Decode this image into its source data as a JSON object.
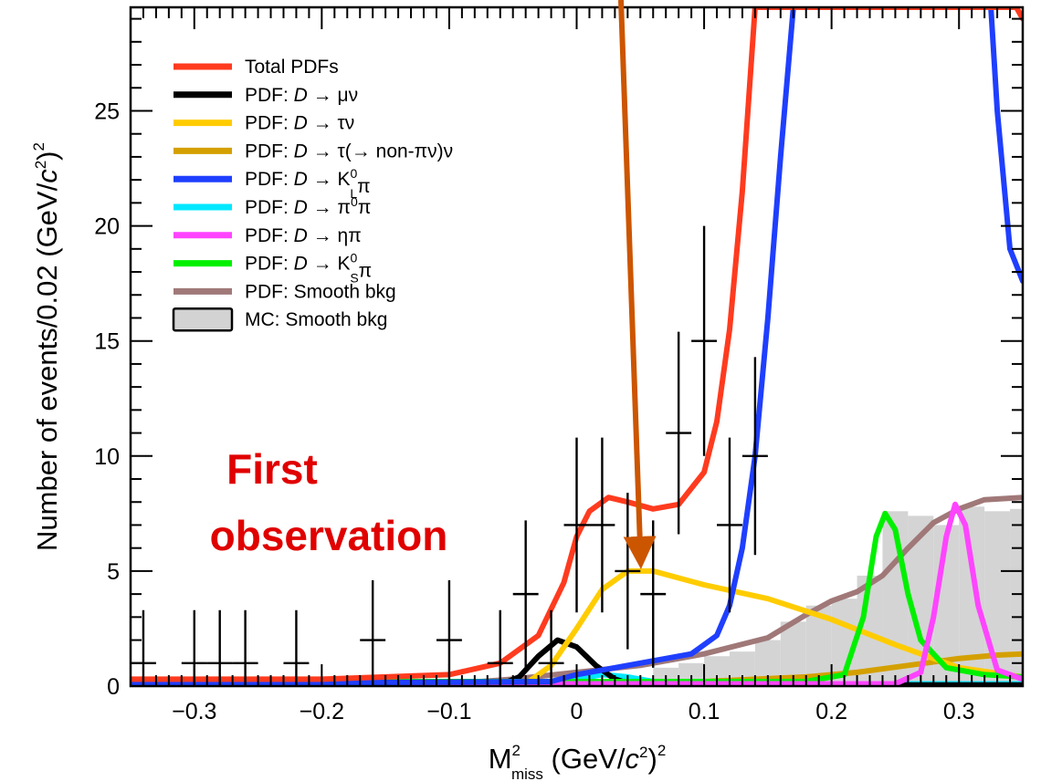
{
  "chart_data": {
    "type": "line",
    "xlabel": "M²miss (GeV/c²)²",
    "xlabel_parts": {
      "main": "M",
      "sup": "2",
      "sub": "miss",
      "rest": "(GeV/",
      "c": "c",
      "rest2": ")"
    },
    "ylabel": "Number of events/0.02 (GeV/c²)²",
    "xlim": [
      -0.35,
      0.35
    ],
    "ylim": [
      0,
      29.5
    ],
    "x_ticks": [
      -0.3,
      -0.2,
      -0.1,
      0,
      0.1,
      0.2,
      0.3
    ],
    "x_tick_labels": [
      "−0.3",
      "−0.2",
      "−0.1",
      "0",
      "0.1",
      "0.2",
      "0.3"
    ],
    "y_ticks": [
      0,
      5,
      10,
      15,
      20,
      25
    ],
    "y_tick_labels": [
      "0",
      "5",
      "10",
      "15",
      "20",
      "25"
    ],
    "legend_position": "top-left",
    "legend": [
      {
        "label": "Total PDFs",
        "color": "#ff3b1f",
        "kind": "line"
      },
      {
        "label": "PDF: D → μν",
        "color": "#000000",
        "kind": "line"
      },
      {
        "label": "PDF: D → τν",
        "color": "#ffcc00",
        "kind": "line"
      },
      {
        "label": "PDF: D → τ(→ non-πν)ν",
        "color": "#d4a000",
        "kind": "line"
      },
      {
        "label": "PDF: D → K⁰Lπ",
        "color": "#1f3fff",
        "kind": "line"
      },
      {
        "label": "PDF: D → π⁰π",
        "color": "#00e8ff",
        "kind": "line"
      },
      {
        "label": "PDF: D → ηπ",
        "color": "#ff44ff",
        "kind": "line"
      },
      {
        "label": "PDF: D → K⁰Sπ",
        "color": "#00f000",
        "kind": "line"
      },
      {
        "label": "PDF: Smooth bkg",
        "color": "#a07878",
        "kind": "line"
      },
      {
        "label": "MC: Smooth bkg",
        "color": "#d3d3d3",
        "kind": "box"
      }
    ],
    "annotation": {
      "lines": [
        "First",
        "observation"
      ],
      "color": "#e00000",
      "arrow_color": "#cc5500",
      "arrow_target": [
        0.05,
        5
      ]
    },
    "data_points": [
      {
        "x": -0.34,
        "y": 1,
        "err": 2.3
      },
      {
        "x": -0.3,
        "y": 1,
        "err": 2.3
      },
      {
        "x": -0.28,
        "y": 1,
        "err": 2.3
      },
      {
        "x": -0.26,
        "y": 1,
        "err": 2.3
      },
      {
        "x": -0.22,
        "y": 1,
        "err": 2.3
      },
      {
        "x": -0.16,
        "y": 2,
        "err": 2.6
      },
      {
        "x": -0.1,
        "y": 2,
        "err": 2.6
      },
      {
        "x": -0.06,
        "y": 1,
        "err": 2.3
      },
      {
        "x": -0.04,
        "y": 4,
        "err": 3.2
      },
      {
        "x": -0.02,
        "y": 1,
        "err": 2.3
      },
      {
        "x": 0.0,
        "y": 7,
        "err": 3.8
      },
      {
        "x": 0.02,
        "y": 7,
        "err": 3.8
      },
      {
        "x": 0.04,
        "y": 5,
        "err": 3.4
      },
      {
        "x": 0.06,
        "y": 4,
        "err": 3.2
      },
      {
        "x": 0.08,
        "y": 11,
        "err": 4.4
      },
      {
        "x": 0.1,
        "y": 15,
        "err": 5.0
      },
      {
        "x": 0.12,
        "y": 7,
        "err": 3.8
      },
      {
        "x": 0.14,
        "y": 10,
        "err": 4.3
      }
    ],
    "mc_histogram": {
      "bin_width": 0.02,
      "bins": [
        {
          "x": 0.07,
          "y": 0.8
        },
        {
          "x": 0.09,
          "y": 1.0
        },
        {
          "x": 0.11,
          "y": 1.3
        },
        {
          "x": 0.13,
          "y": 1.5
        },
        {
          "x": 0.15,
          "y": 2.0
        },
        {
          "x": 0.17,
          "y": 2.8
        },
        {
          "x": 0.19,
          "y": 3.5
        },
        {
          "x": 0.21,
          "y": 3.8
        },
        {
          "x": 0.23,
          "y": 4.8
        },
        {
          "x": 0.25,
          "y": 7.6
        },
        {
          "x": 0.27,
          "y": 7.4
        },
        {
          "x": 0.29,
          "y": 7.0
        },
        {
          "x": 0.31,
          "y": 7.8
        },
        {
          "x": 0.33,
          "y": 7.6
        },
        {
          "x": 0.35,
          "y": 7.7
        }
      ]
    },
    "series": [
      {
        "name": "PDF: Smooth bkg",
        "color": "#a07878",
        "points": [
          [
            -0.35,
            0.05
          ],
          [
            -0.1,
            0.1
          ],
          [
            -0.05,
            0.3
          ],
          [
            0.0,
            0.6
          ],
          [
            0.05,
            0.9
          ],
          [
            0.1,
            1.4
          ],
          [
            0.15,
            2.1
          ],
          [
            0.18,
            3.1
          ],
          [
            0.2,
            3.7
          ],
          [
            0.22,
            4.1
          ],
          [
            0.24,
            4.8
          ],
          [
            0.26,
            6.0
          ],
          [
            0.28,
            7.1
          ],
          [
            0.3,
            7.7
          ],
          [
            0.32,
            8.1
          ],
          [
            0.35,
            8.2
          ]
        ]
      },
      {
        "name": "PDF: D → τ(→ non-πν)ν",
        "color": "#d4a000",
        "points": [
          [
            -0.35,
            0.1
          ],
          [
            -0.1,
            0.1
          ],
          [
            0.0,
            0.15
          ],
          [
            0.1,
            0.2
          ],
          [
            0.18,
            0.4
          ],
          [
            0.22,
            0.6
          ],
          [
            0.26,
            0.9
          ],
          [
            0.3,
            1.2
          ],
          [
            0.33,
            1.35
          ],
          [
            0.35,
            1.4
          ]
        ]
      },
      {
        "name": "PDF: D → π⁰π",
        "color": "#00e8ff",
        "points": [
          [
            -0.35,
            0.1
          ],
          [
            -0.02,
            0.1
          ],
          [
            0.0,
            0.3
          ],
          [
            0.02,
            0.5
          ],
          [
            0.04,
            0.4
          ],
          [
            0.06,
            0.2
          ],
          [
            0.1,
            0.1
          ],
          [
            0.35,
            0.1
          ]
        ]
      },
      {
        "name": "PDF: D → μν",
        "color": "#000000",
        "points": [
          [
            -0.35,
            0.05
          ],
          [
            -0.06,
            0.05
          ],
          [
            -0.045,
            0.4
          ],
          [
            -0.03,
            1.3
          ],
          [
            -0.015,
            2.0
          ],
          [
            0.0,
            1.7
          ],
          [
            0.015,
            0.9
          ],
          [
            0.03,
            0.3
          ],
          [
            0.045,
            0.05
          ],
          [
            0.35,
            0.05
          ]
        ]
      },
      {
        "name": "PDF: D → τν",
        "color": "#ffcc00",
        "points": [
          [
            -0.35,
            0.1
          ],
          [
            -0.04,
            0.1
          ],
          [
            -0.02,
            0.9
          ],
          [
            0.0,
            2.5
          ],
          [
            0.02,
            4.2
          ],
          [
            0.04,
            5.0
          ],
          [
            0.06,
            5.0
          ],
          [
            0.1,
            4.4
          ],
          [
            0.15,
            3.8
          ],
          [
            0.2,
            2.9
          ],
          [
            0.25,
            1.8
          ],
          [
            0.3,
            0.8
          ],
          [
            0.35,
            0.4
          ]
        ]
      },
      {
        "name": "PDF: D → K⁰Sπ",
        "color": "#00f000",
        "points": [
          [
            -0.35,
            0.2
          ],
          [
            0.18,
            0.2
          ],
          [
            0.21,
            0.5
          ],
          [
            0.225,
            3.0
          ],
          [
            0.235,
            6.5
          ],
          [
            0.242,
            7.5
          ],
          [
            0.25,
            6.8
          ],
          [
            0.26,
            4.0
          ],
          [
            0.27,
            2.0
          ],
          [
            0.29,
            0.8
          ],
          [
            0.32,
            0.5
          ],
          [
            0.35,
            0.4
          ]
        ]
      },
      {
        "name": "PDF: D → ηπ",
        "color": "#ff44ff",
        "points": [
          [
            -0.35,
            0.1
          ],
          [
            0.25,
            0.1
          ],
          [
            0.27,
            0.6
          ],
          [
            0.28,
            3.0
          ],
          [
            0.29,
            6.5
          ],
          [
            0.297,
            7.9
          ],
          [
            0.305,
            7.0
          ],
          [
            0.315,
            3.5
          ],
          [
            0.33,
            0.7
          ],
          [
            0.35,
            0.3
          ]
        ]
      },
      {
        "name": "PDF: D → K⁰Lπ",
        "color": "#1f3fff",
        "points": [
          [
            -0.35,
            0.1
          ],
          [
            -0.02,
            0.2
          ],
          [
            0.0,
            0.5
          ],
          [
            0.05,
            1.0
          ],
          [
            0.09,
            1.4
          ],
          [
            0.11,
            2.2
          ],
          [
            0.12,
            3.5
          ],
          [
            0.13,
            6.0
          ],
          [
            0.14,
            10.0
          ],
          [
            0.15,
            16.0
          ],
          [
            0.16,
            23.0
          ],
          [
            0.17,
            29.5
          ],
          [
            0.325,
            29.5
          ],
          [
            0.33,
            25.0
          ],
          [
            0.34,
            19.0
          ],
          [
            0.35,
            17.6
          ]
        ]
      },
      {
        "name": "Total PDFs",
        "color": "#ff3b1f",
        "points": [
          [
            -0.35,
            0.3
          ],
          [
            -0.2,
            0.3
          ],
          [
            -0.1,
            0.5
          ],
          [
            -0.06,
            1.0
          ],
          [
            -0.03,
            2.2
          ],
          [
            -0.01,
            4.5
          ],
          [
            0.0,
            6.5
          ],
          [
            0.01,
            7.6
          ],
          [
            0.025,
            8.2
          ],
          [
            0.04,
            8.0
          ],
          [
            0.06,
            7.7
          ],
          [
            0.08,
            7.9
          ],
          [
            0.1,
            9.3
          ],
          [
            0.11,
            11.5
          ],
          [
            0.12,
            15.5
          ],
          [
            0.13,
            21.5
          ],
          [
            0.14,
            29.5
          ],
          [
            0.345,
            29.5
          ],
          [
            0.35,
            29.0
          ]
        ]
      }
    ]
  }
}
